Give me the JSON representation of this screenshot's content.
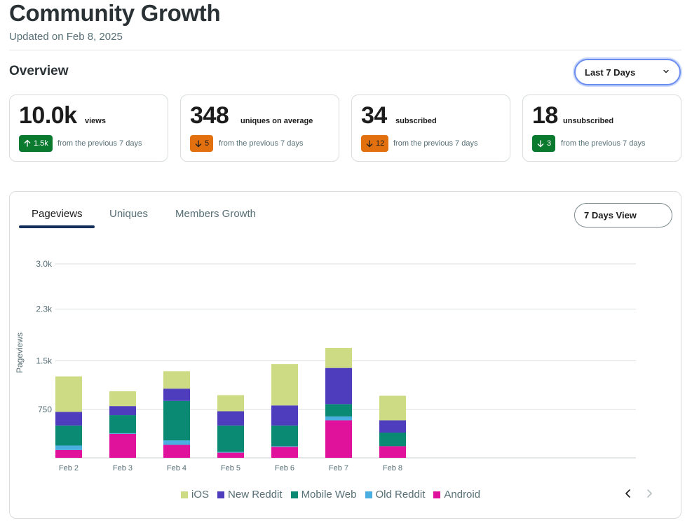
{
  "header": {
    "title": "Community Growth",
    "updated": "Updated on Feb 8, 2025"
  },
  "overview": {
    "heading": "Overview",
    "range_select": "Last 7 Days"
  },
  "stats": [
    {
      "value": "10.0k",
      "label": "views",
      "delta": "1.5k",
      "direction": "up",
      "note": "from the previous 7 days"
    },
    {
      "value": "348",
      "label": "uniques on average",
      "delta": "5",
      "direction": "down",
      "note": "from the previous 7 days"
    },
    {
      "value": "34",
      "label": "subscribed",
      "delta": "12",
      "direction": "down",
      "note": "from the previous 7 days"
    },
    {
      "value": "18",
      "label": "unsubscribed",
      "delta": "3",
      "direction": "down",
      "note": "from the previous 7 days"
    }
  ],
  "chart_panel": {
    "tabs": [
      "Pageviews",
      "Uniques",
      "Members Growth"
    ],
    "active_tab": "Pageviews",
    "view_button": "7 Days View",
    "nav_prev": "chevron-left-icon",
    "nav_next": "chevron-right-icon"
  },
  "colors": {
    "iOS": "#cddc84",
    "New Reddit": "#4e3dbd",
    "Mobile Web": "#0b8a73",
    "Old Reddit": "#4aaee0",
    "Android": "#e0119a",
    "delta_up": "#0a7a2f",
    "delta_down_orange": "#e3700f",
    "focus": "#6b8df0"
  },
  "chart_data": {
    "type": "bar",
    "stacked": true,
    "categories": [
      "Feb 2",
      "Feb 3",
      "Feb 4",
      "Feb 5",
      "Feb 6",
      "Feb 7",
      "Feb 8"
    ],
    "ylabel": "Pageviews",
    "ylim": [
      0,
      3000
    ],
    "yticks": [
      750,
      1500,
      2300,
      3000
    ],
    "ytick_labels": [
      "750",
      "1.5k",
      "2.3k",
      "3.0k"
    ],
    "grid": true,
    "legend_position": "bottom",
    "series": [
      {
        "name": "Android",
        "values": [
          120,
          370,
          200,
          80,
          170,
          580,
          180
        ]
      },
      {
        "name": "Old Reddit",
        "values": [
          70,
          10,
          70,
          10,
          10,
          60,
          0
        ]
      },
      {
        "name": "Mobile Web",
        "values": [
          310,
          280,
          610,
          410,
          320,
          190,
          210
        ]
      },
      {
        "name": "New Reddit",
        "values": [
          210,
          140,
          190,
          220,
          310,
          560,
          190
        ]
      },
      {
        "name": "iOS",
        "values": [
          550,
          230,
          270,
          250,
          640,
          310,
          380
        ]
      }
    ],
    "legend_order": [
      "iOS",
      "New Reddit",
      "Mobile Web",
      "Old Reddit",
      "Android"
    ]
  }
}
